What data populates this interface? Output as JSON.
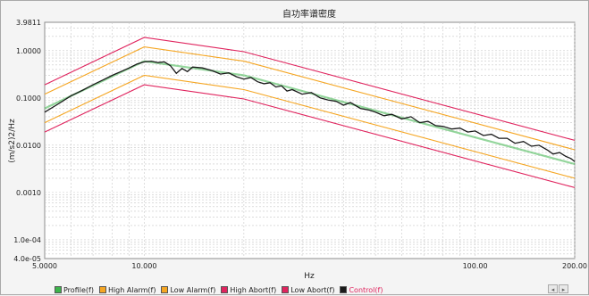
{
  "chart_data": {
    "type": "line",
    "title": "自功率谱密度",
    "xlabel": "Hz",
    "ylabel": "(m/s2)2/Hz",
    "x_scale": "log",
    "y_scale": "log",
    "xlim": [
      5,
      200
    ],
    "ylim": [
      4e-05,
      3.9811
    ],
    "x_tick_labels": [
      {
        "value": 5,
        "label": "5.0000"
      },
      {
        "value": 10,
        "label": "10.000"
      },
      {
        "value": 100,
        "label": "100.00"
      },
      {
        "value": 200,
        "label": "200.00"
      }
    ],
    "y_tick_labels": [
      {
        "value": 3.9811,
        "label": "3.9811"
      },
      {
        "value": 1,
        "label": "1.0000"
      },
      {
        "value": 0.1,
        "label": "0.1000"
      },
      {
        "value": 0.01,
        "label": "0.0100"
      },
      {
        "value": 0.001,
        "label": "0.0010"
      },
      {
        "value": 0.0001,
        "label": "1.0e-04"
      },
      {
        "value": 4e-05,
        "label": "4.0e-05"
      }
    ],
    "grid": true,
    "legend_position": "bottom",
    "series": [
      {
        "name": "Profile(f)",
        "color": "#3cb44b",
        "points": [
          [
            5,
            0.06
          ],
          [
            10,
            0.6
          ],
          [
            20,
            0.3
          ],
          [
            200,
            0.004
          ]
        ]
      },
      {
        "name": "High Alarm(f)",
        "color": "#f5a623",
        "points": [
          [
            5,
            0.12
          ],
          [
            10,
            1.2
          ],
          [
            20,
            0.6
          ],
          [
            200,
            0.008
          ]
        ]
      },
      {
        "name": "Low Alarm(f)",
        "color": "#f5a623",
        "points": [
          [
            5,
            0.03
          ],
          [
            10,
            0.3
          ],
          [
            20,
            0.15
          ],
          [
            200,
            0.002
          ]
        ]
      },
      {
        "name": "High Abort(f)",
        "color": "#e0245e",
        "points": [
          [
            5,
            0.19
          ],
          [
            10,
            1.9
          ],
          [
            20,
            0.95
          ],
          [
            200,
            0.0127
          ]
        ]
      },
      {
        "name": "Low Abort(f)",
        "color": "#e0245e",
        "points": [
          [
            5,
            0.019
          ],
          [
            10,
            0.19
          ],
          [
            20,
            0.095
          ],
          [
            200,
            0.00127
          ]
        ]
      },
      {
        "name": "Control(f)",
        "color": "#1a1a1a",
        "points": [
          [
            5,
            0.05
          ],
          [
            5.5,
            0.075
          ],
          [
            6,
            0.11
          ],
          [
            6.5,
            0.145
          ],
          [
            7,
            0.19
          ],
          [
            7.5,
            0.24
          ],
          [
            8,
            0.3
          ],
          [
            8.5,
            0.36
          ],
          [
            9,
            0.43
          ],
          [
            9.5,
            0.52
          ],
          [
            10,
            0.58
          ],
          [
            10.5,
            0.6
          ],
          [
            11,
            0.56
          ],
          [
            11.5,
            0.58
          ],
          [
            12,
            0.48
          ],
          [
            12.5,
            0.33
          ],
          [
            13,
            0.42
          ],
          [
            13.5,
            0.36
          ],
          [
            14,
            0.45
          ],
          [
            15,
            0.43
          ],
          [
            16,
            0.38
          ],
          [
            17,
            0.32
          ],
          [
            18,
            0.34
          ],
          [
            19,
            0.28
          ],
          [
            20,
            0.25
          ],
          [
            21,
            0.27
          ],
          [
            22,
            0.22
          ],
          [
            23,
            0.2
          ],
          [
            24,
            0.21
          ],
          [
            25,
            0.17
          ],
          [
            26,
            0.18
          ],
          [
            27,
            0.14
          ],
          [
            28,
            0.15
          ],
          [
            30,
            0.12
          ],
          [
            32,
            0.13
          ],
          [
            34,
            0.1
          ],
          [
            36,
            0.09
          ],
          [
            38,
            0.085
          ],
          [
            40,
            0.07
          ],
          [
            42,
            0.08
          ],
          [
            45,
            0.06
          ],
          [
            48,
            0.055
          ],
          [
            50,
            0.05
          ],
          [
            53,
            0.042
          ],
          [
            56,
            0.045
          ],
          [
            60,
            0.036
          ],
          [
            64,
            0.04
          ],
          [
            68,
            0.03
          ],
          [
            72,
            0.032
          ],
          [
            76,
            0.026
          ],
          [
            80,
            0.025
          ],
          [
            85,
            0.022
          ],
          [
            90,
            0.023
          ],
          [
            95,
            0.019
          ],
          [
            100,
            0.02
          ],
          [
            106,
            0.016
          ],
          [
            112,
            0.017
          ],
          [
            118,
            0.014
          ],
          [
            125,
            0.014
          ],
          [
            132,
            0.011
          ],
          [
            140,
            0.012
          ],
          [
            148,
            0.0095
          ],
          [
            156,
            0.01
          ],
          [
            165,
            0.008
          ],
          [
            172,
            0.0065
          ],
          [
            180,
            0.007
          ],
          [
            188,
            0.0058
          ],
          [
            195,
            0.0052
          ],
          [
            200,
            0.0045
          ]
        ]
      }
    ]
  }
}
